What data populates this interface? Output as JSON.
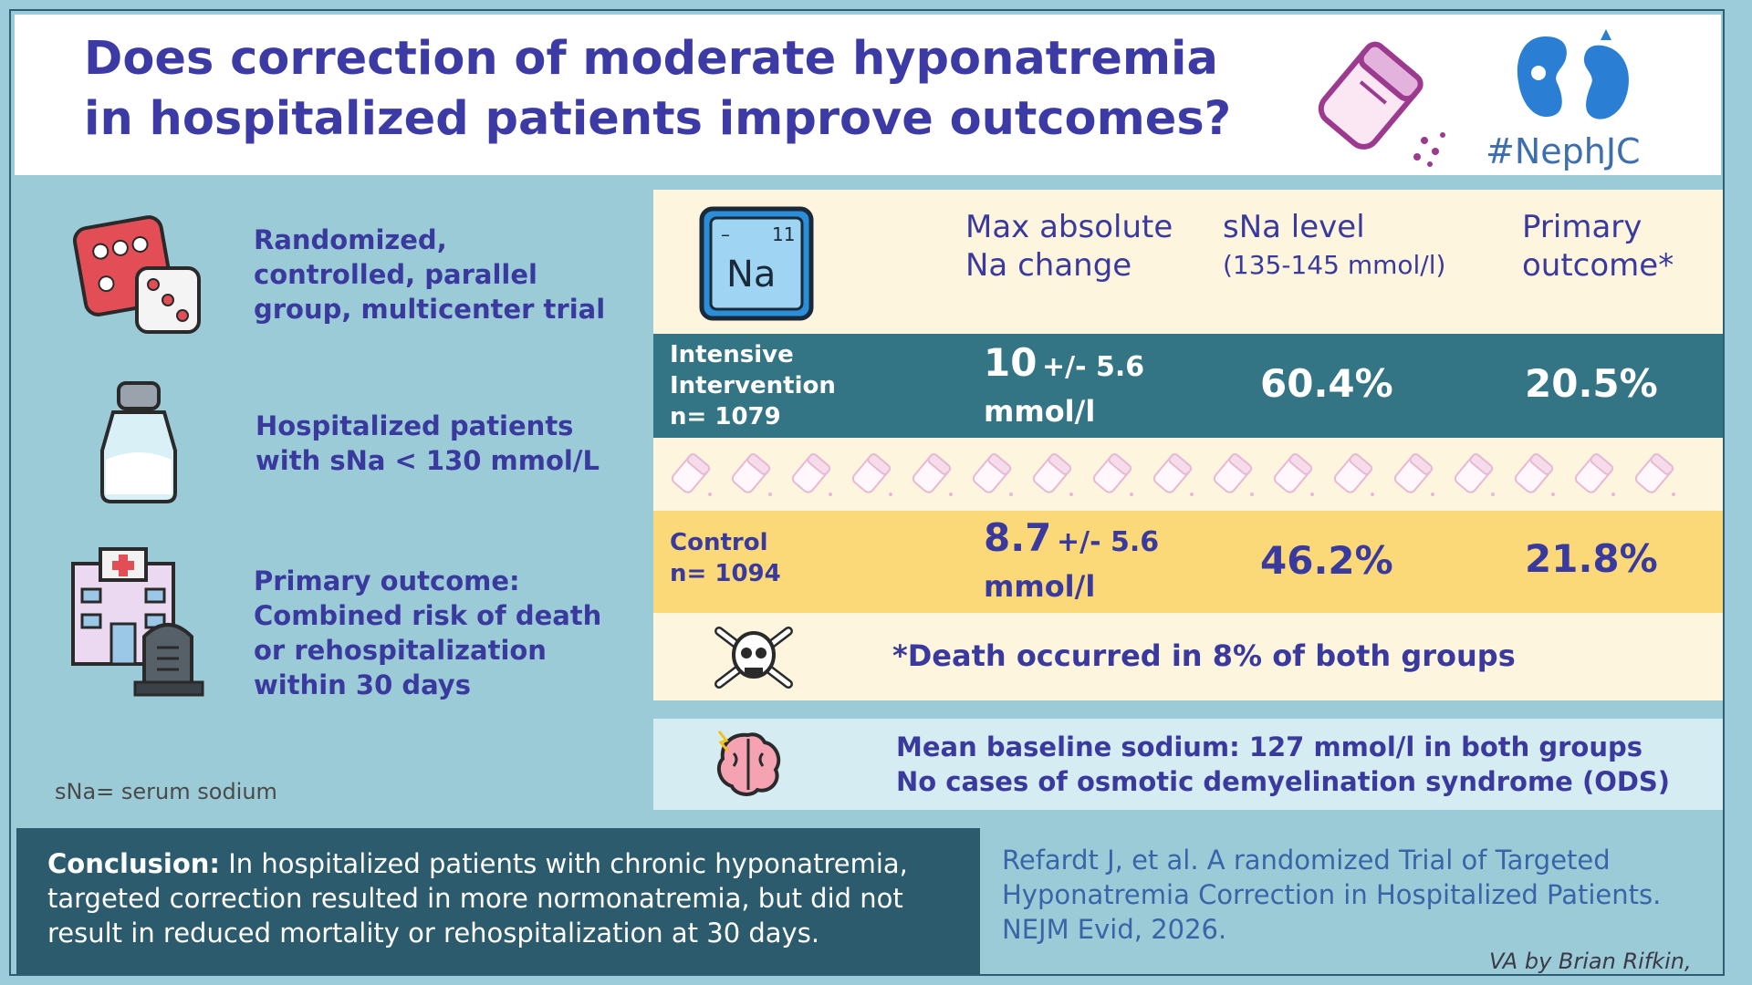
{
  "header": {
    "title_line1": "Does correction of moderate hyponatremia",
    "title_line2": "in hospitalized patients improve outcomes?",
    "hashtag": "#NephJC",
    "icons": [
      "salt-shaker-icon",
      "kidney-icon"
    ]
  },
  "left": {
    "design": [
      "Randomized,",
      "controlled, parallel",
      "group, multicenter trial"
    ],
    "population": [
      "Hospitalized patients",
      "with sNa < 130 mmol/L"
    ],
    "outcome": [
      "Primary outcome:",
      "Combined risk of death",
      "or rehospitalization",
      "within 30 days"
    ],
    "note": "sNa= serum sodium"
  },
  "table": {
    "na_tile": {
      "symbol": "Na",
      "number": "11",
      "dash": "–"
    },
    "col1": [
      "Max absolute",
      "Na change"
    ],
    "col2": [
      "sNa level",
      "(135-145 mmol/l)"
    ],
    "col3": [
      "Primary",
      "outcome*"
    ],
    "intensive": {
      "name": [
        "Intensive",
        "Intervention",
        "n= 1079"
      ],
      "change_main": "10",
      "change_sd": "+/- 5.6",
      "change_unit": "mmol/l",
      "sna": "60.4%",
      "outcome": "20.5%"
    },
    "control": {
      "name": [
        "Control",
        "n= 1094"
      ],
      "change_main": "8.7",
      "change_sd": "+/- 5.6",
      "change_unit": "mmol/l",
      "sna": "46.2%",
      "outcome": "21.8%"
    },
    "death_note": "*Death occurred in 8% of both groups",
    "baseline": [
      "Mean baseline sodium: 127 mmol/l in both groups",
      "No cases of osmotic demyelination syndrome (ODS)"
    ]
  },
  "conclusion": {
    "label": "Conclusion:",
    "text": " In hospitalized patients with chronic hyponatremia, targeted correction resulted in more normonatremia, but did not result in reduced mortality or rehospitalization at 30 days."
  },
  "reference": [
    "Refardt J, et al. A randomized Trial of Targeted",
    "Hyponatremia Correction in Hospitalized Patients.",
    "NEJM Evid, 2026."
  ],
  "credit": "VA by Brian Rifkin, MD",
  "colors": {
    "title": "#3c3aa5",
    "background": "#9ccbd8",
    "intensive_row": "#347585",
    "control_row": "#fbd978",
    "cream": "#fdf5dd",
    "conclusion_bg": "#2b5b6d"
  }
}
